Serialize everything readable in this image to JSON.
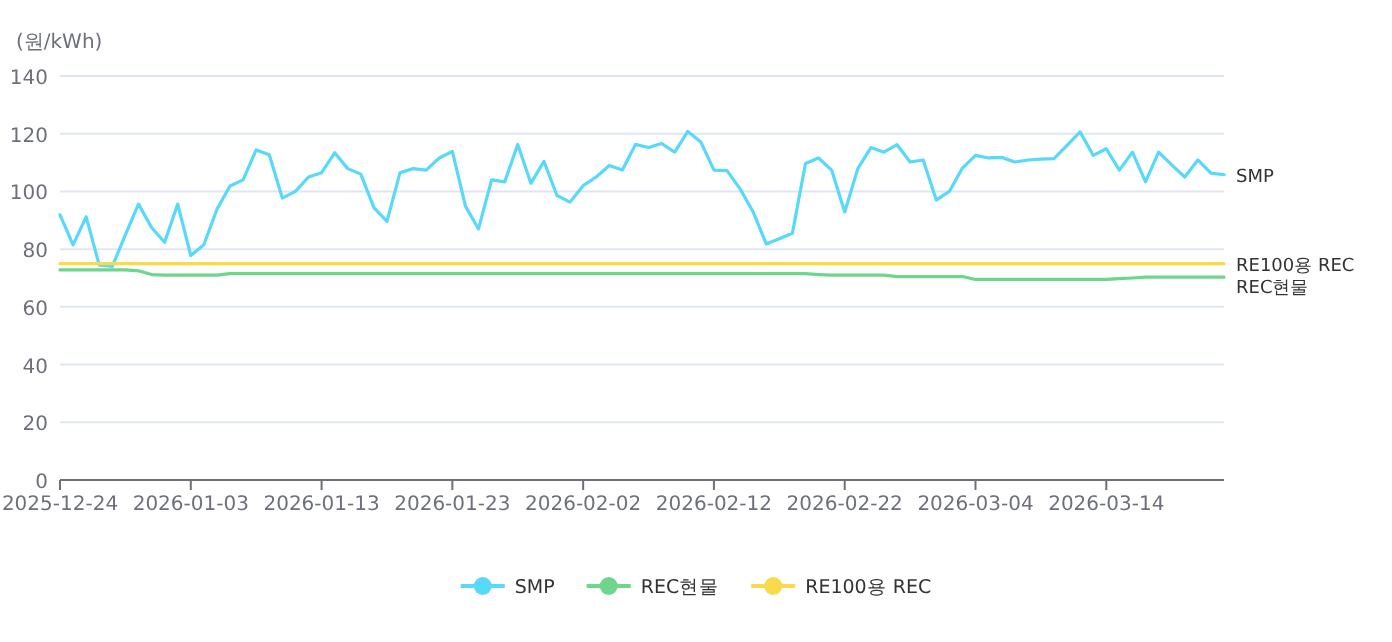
{
  "chart_data": {
    "type": "line",
    "ylabel": "(원/kWh)",
    "grid": "y",
    "legend": "bottom",
    "x": [
      "2025-12-24",
      "2025-12-25",
      "2025-12-26",
      "2025-12-27",
      "2025-12-28",
      "2025-12-29",
      "2025-12-30",
      "2025-12-31",
      "2026-01-01",
      "2026-01-02",
      "2026-01-03",
      "2026-01-04",
      "2026-01-05",
      "2026-01-06",
      "2026-01-07",
      "2026-01-08",
      "2026-01-09",
      "2026-01-10",
      "2026-01-11",
      "2026-01-12",
      "2026-01-13",
      "2026-01-14",
      "2026-01-15",
      "2026-01-16",
      "2026-01-17",
      "2026-01-18",
      "2026-01-19",
      "2026-01-20",
      "2026-01-21",
      "2026-01-22",
      "2026-01-23",
      "2026-01-24",
      "2026-01-25",
      "2026-01-26",
      "2026-01-27",
      "2026-01-28",
      "2026-01-29",
      "2026-01-30",
      "2026-01-31",
      "2026-02-01",
      "2026-02-02",
      "2026-02-03",
      "2026-02-04",
      "2026-02-05",
      "2026-02-06",
      "2026-02-07",
      "2026-02-08",
      "2026-02-09",
      "2026-02-10",
      "2026-02-11",
      "2026-02-12",
      "2026-02-13",
      "2026-02-14",
      "2026-02-15",
      "2026-02-16",
      "2026-02-17",
      "2026-02-18",
      "2026-02-19",
      "2026-02-20",
      "2026-02-21",
      "2026-02-22",
      "2026-02-23",
      "2026-02-24",
      "2026-02-25",
      "2026-02-26",
      "2026-02-27",
      "2026-02-28",
      "2026-03-01",
      "2026-03-02",
      "2026-03-03",
      "2026-03-04",
      "2026-03-05",
      "2026-03-06",
      "2026-03-07",
      "2026-03-08",
      "2026-03-09",
      "2026-03-10",
      "2026-03-11",
      "2026-03-12",
      "2026-03-13",
      "2026-03-14",
      "2026-03-15",
      "2026-03-16",
      "2026-03-17",
      "2026-03-18",
      "2026-03-19",
      "2026-03-20",
      "2026-03-21",
      "2026-03-22",
      "2026-03-23"
    ],
    "xlim": [
      "2025-12-24",
      "2026-03-23"
    ],
    "xticks": [
      "2025-12-24",
      "2026-01-03",
      "2026-01-13",
      "2026-01-23",
      "2026-02-02",
      "2026-02-12",
      "2026-02-22",
      "2026-03-04",
      "2026-03-14"
    ],
    "ylim": [
      0,
      140
    ],
    "yticks": [
      0,
      20,
      40,
      60,
      80,
      100,
      120,
      140
    ],
    "series": [
      {
        "name": "SMP",
        "color": "#58d9f9",
        "values": [
          91.9,
          81.5,
          91.2,
          74.5,
          74,
          85,
          95.6,
          87.5,
          82.4,
          95.6,
          77.8,
          81.5,
          93.8,
          101.9,
          104,
          114.4,
          112.7,
          97.7,
          100,
          105,
          106.5,
          113.4,
          107.9,
          106,
          94.4,
          89.6,
          106.5,
          107.9,
          107.4,
          111.6,
          113.9,
          94.9,
          87,
          104,
          103.3,
          116.3,
          102.8,
          110.4,
          98.6,
          96.3,
          102,
          105,
          109,
          107.4,
          116.3,
          115.2,
          116.6,
          113.6,
          120.8,
          117.1,
          107.4,
          107.2,
          100.9,
          92.9,
          81.8,
          83.6,
          85.5,
          109.7,
          111.6,
          107.4,
          92.9,
          107.9,
          115.2,
          113.6,
          116.2,
          110.2,
          110.9,
          97,
          100,
          108.1,
          112.5,
          111.6,
          111.8,
          110.2,
          110.9,
          111.2,
          111.4,
          116,
          120.6,
          112.5,
          114.8,
          107.4,
          113.6,
          103.3,
          113.6,
          109.2,
          105,
          110.9,
          106.3,
          105.8
        ]
      },
      {
        "name": "REC현물",
        "color": "#6dd68c",
        "values": [
          72.8,
          72.8,
          72.8,
          72.8,
          72.8,
          72.8,
          72.5,
          71.2,
          71,
          71,
          71,
          71,
          71,
          71.5,
          71.5,
          71.5,
          71.5,
          71.5,
          71.5,
          71.5,
          71.5,
          71.5,
          71.5,
          71.5,
          71.5,
          71.5,
          71.5,
          71.5,
          71.5,
          71.5,
          71.5,
          71.5,
          71.5,
          71.5,
          71.5,
          71.5,
          71.5,
          71.5,
          71.5,
          71.5,
          71.5,
          71.5,
          71.5,
          71.5,
          71.5,
          71.5,
          71.5,
          71.5,
          71.5,
          71.5,
          71.5,
          71.5,
          71.5,
          71.5,
          71.5,
          71.5,
          71.5,
          71.5,
          71.2,
          71,
          71,
          71,
          71,
          71,
          70.5,
          70.5,
          70.5,
          70.5,
          70.5,
          70.5,
          69.5,
          69.5,
          69.5,
          69.5,
          69.5,
          69.5,
          69.5,
          69.5,
          69.5,
          69.5,
          69.5,
          69.8,
          70,
          70.3,
          70.3,
          70.3,
          70.3,
          70.3,
          70.3,
          70.3
        ]
      },
      {
        "name": "RE100용 REC",
        "color": "#fad94a",
        "values": [
          75,
          75,
          75,
          75,
          75,
          75,
          75,
          75,
          75,
          75,
          75,
          75,
          75,
          75,
          75,
          75,
          75,
          75,
          75,
          75,
          75,
          75,
          75,
          75,
          75,
          75,
          75,
          75,
          75,
          75,
          75,
          75,
          75,
          75,
          75,
          75,
          75,
          75,
          75,
          75,
          75,
          75,
          75,
          75,
          75,
          75,
          75,
          75,
          75,
          75,
          75,
          75,
          75,
          75,
          75,
          75,
          75,
          75,
          75,
          75,
          75,
          75,
          75,
          75,
          75,
          75,
          75,
          75,
          75,
          75,
          75,
          75,
          75,
          75,
          75,
          75,
          75,
          75,
          75,
          75,
          75,
          75,
          75,
          75,
          75,
          75,
          75,
          75,
          75,
          75
        ]
      }
    ]
  }
}
